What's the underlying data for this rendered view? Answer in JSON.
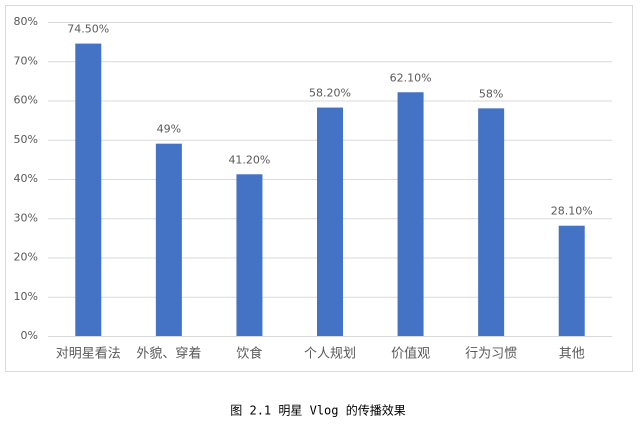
{
  "chart_data": {
    "type": "bar",
    "caption": "图 2.1 明星 Vlog 的传播效果",
    "categories": [
      "对明星看法",
      "外貌、穿着",
      "饮食",
      "个人规划",
      "价值观",
      "行为习惯",
      "其他"
    ],
    "values": [
      74.5,
      49,
      41.2,
      58.2,
      62.1,
      58,
      28.1
    ],
    "value_labels": [
      "74.50%",
      "49%",
      "41.20%",
      "58.20%",
      "62.10%",
      "58%",
      "28.10%"
    ],
    "color": "#4472c4",
    "ylim": [
      0,
      80
    ],
    "yticks": [
      {
        "value": 0,
        "label": "0%"
      },
      {
        "value": 10,
        "label": "10%"
      },
      {
        "value": 20,
        "label": "20%"
      },
      {
        "value": 30,
        "label": "30%"
      },
      {
        "value": 40,
        "label": "40%"
      },
      {
        "value": 50,
        "label": "50%"
      },
      {
        "value": 60,
        "label": "60%"
      },
      {
        "value": 70,
        "label": "70%"
      },
      {
        "value": 80,
        "label": "80%"
      }
    ],
    "grid": true
  }
}
